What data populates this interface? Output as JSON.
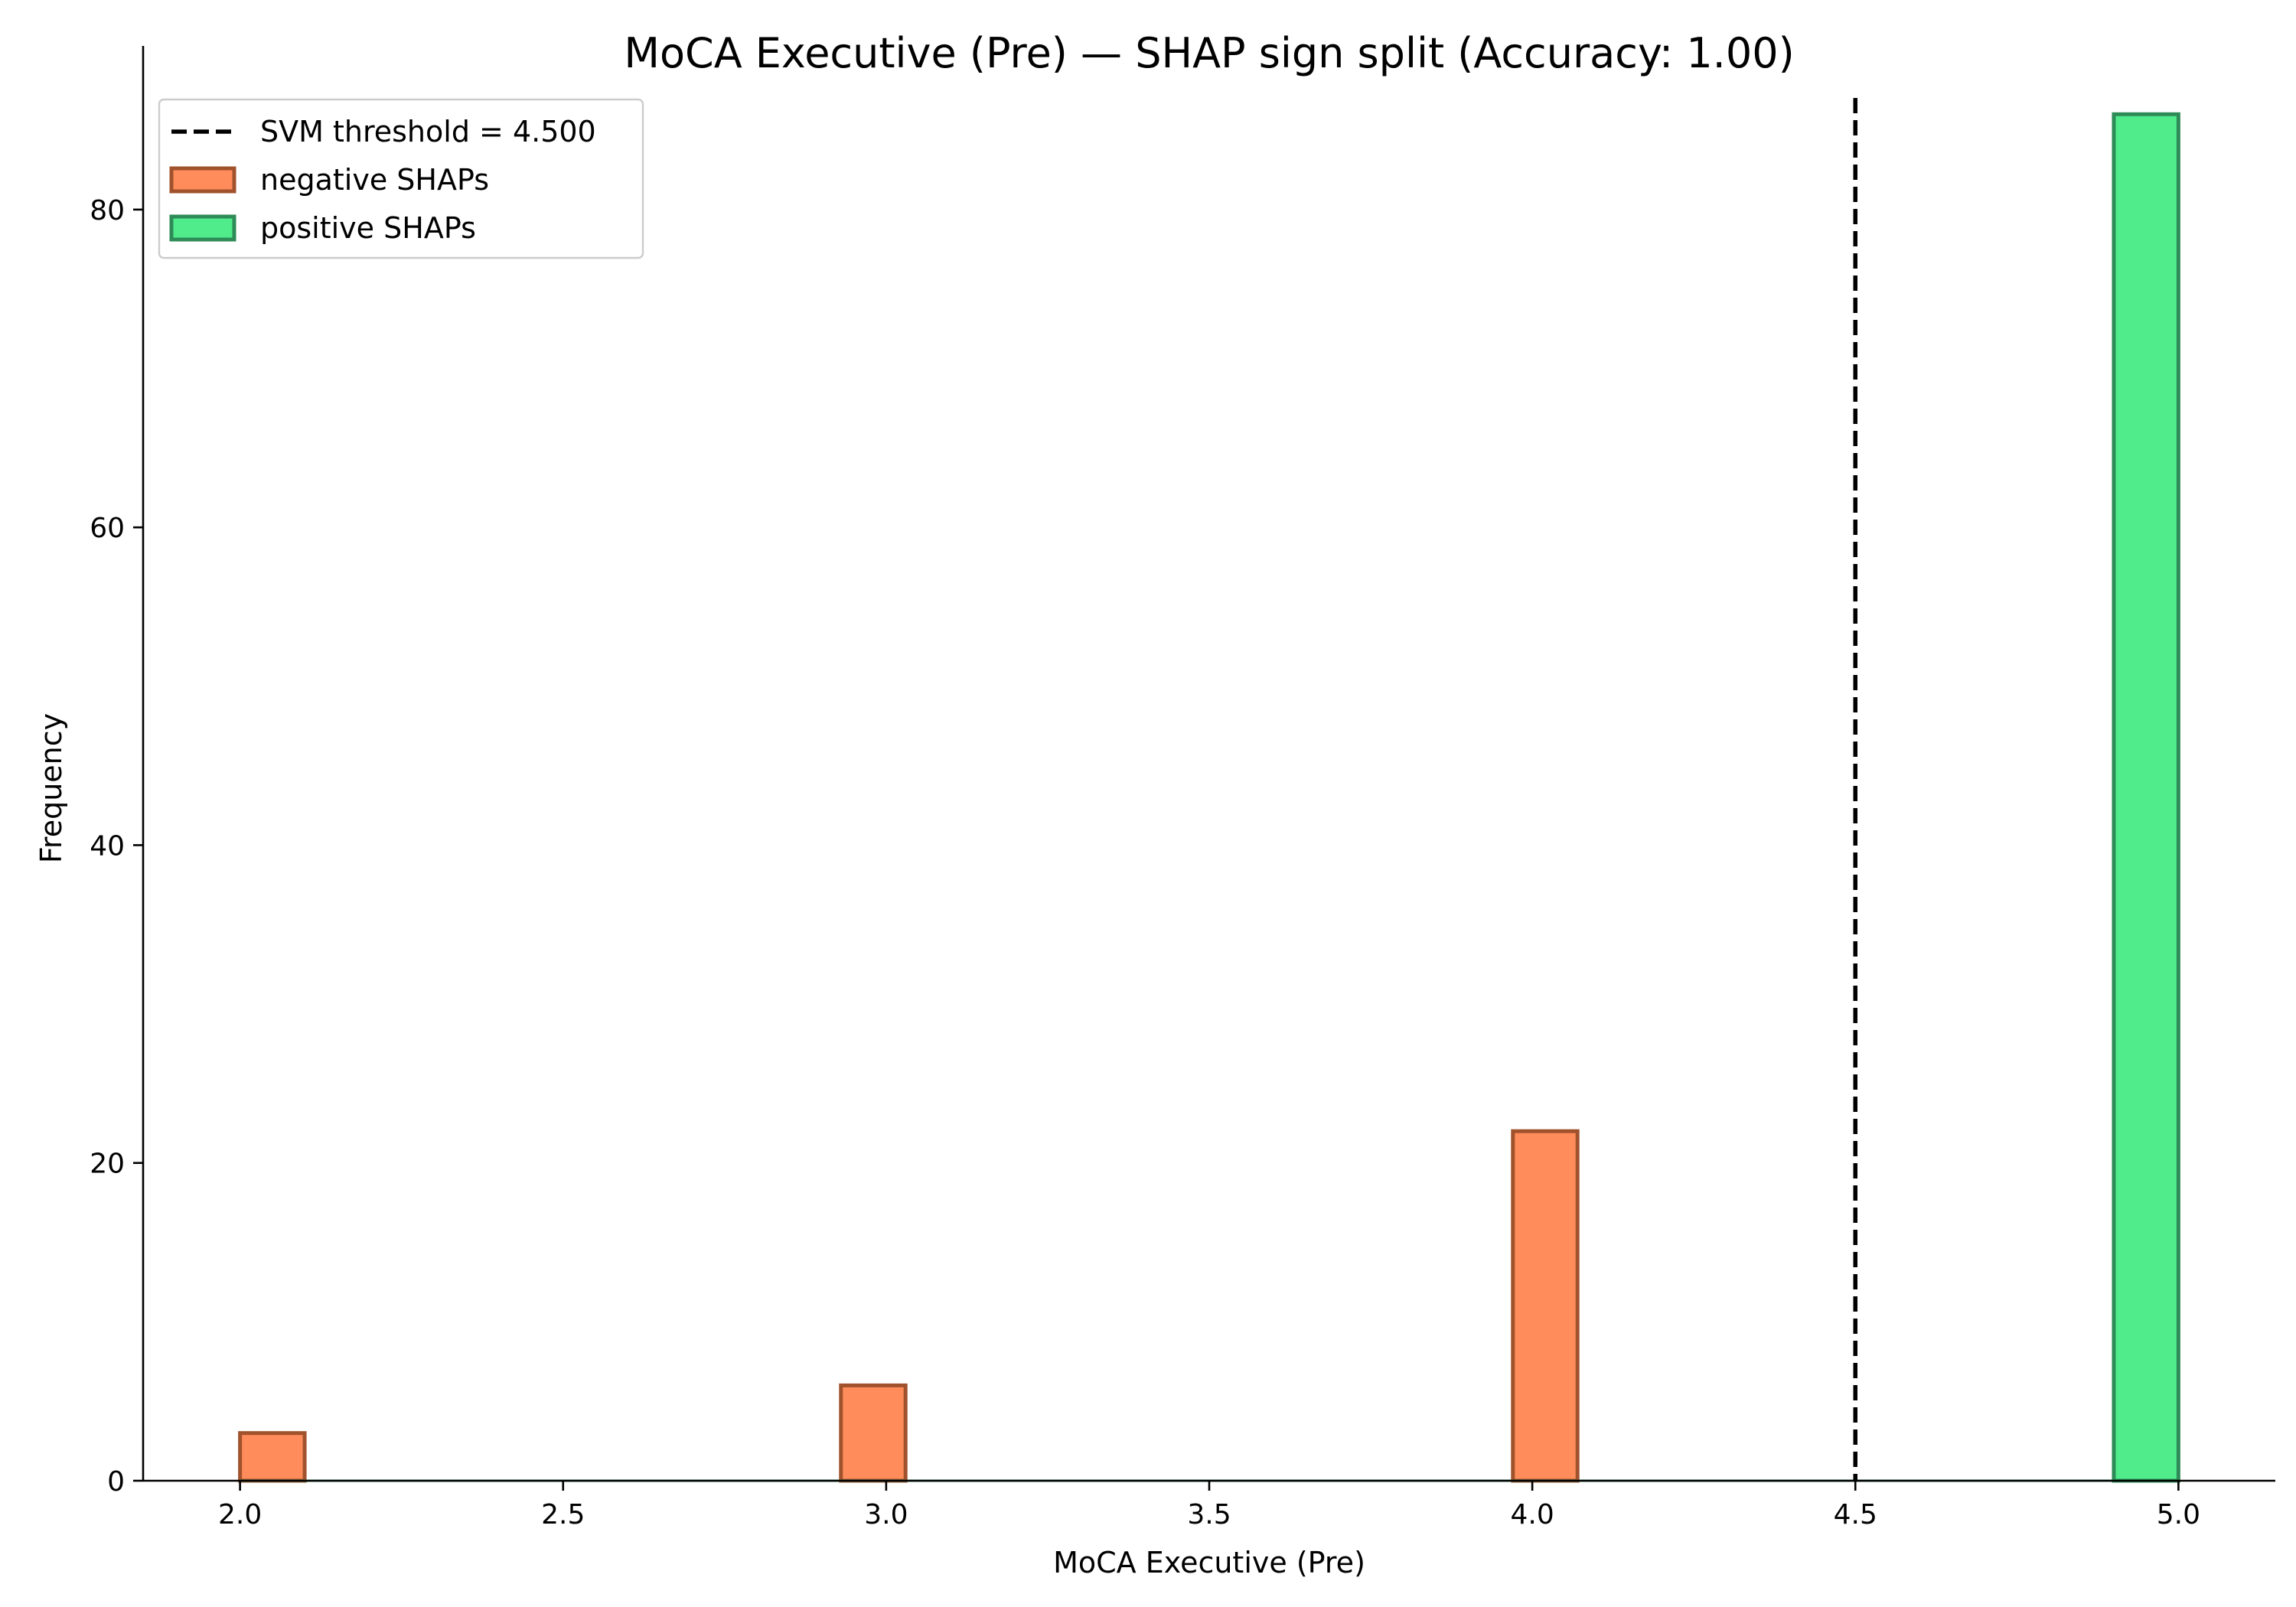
{
  "chart_data": {
    "type": "bar",
    "title": "MoCA Executive (Pre) — SHAP sign split (Accuracy: 1.00)",
    "xlabel": "MoCA Executive (Pre)",
    "ylabel": "Frequency",
    "xlim": [
      1.85,
      5.15
    ],
    "ylim": [
      0,
      90.3
    ],
    "xticks": [
      2.0,
      2.5,
      3.0,
      3.5,
      4.0,
      4.5,
      5.0
    ],
    "xtick_labels": [
      "2.0",
      "2.5",
      "3.0",
      "3.5",
      "4.0",
      "4.5",
      "5.0"
    ],
    "yticks": [
      0,
      20,
      40,
      60,
      80
    ],
    "ytick_labels": [
      "0",
      "20",
      "40",
      "60",
      "80"
    ],
    "bin_width": 0.1,
    "threshold": {
      "label": "SVM threshold = 4.500",
      "value": 4.5,
      "color": "#000000"
    },
    "series": [
      {
        "name": "negative SHAPs",
        "fill": "#ff8c5a",
        "edge": "#a0522d",
        "bins": [
          {
            "x": 2.0,
            "value": 3
          },
          {
            "x": 2.93,
            "value": 6
          },
          {
            "x": 3.97,
            "value": 22
          }
        ]
      },
      {
        "name": "positive SHAPs",
        "fill": "#50ec8c",
        "edge": "#2e8b57",
        "bins": [
          {
            "x": 4.9,
            "value": 86
          }
        ]
      }
    ],
    "legend_position": "top-left",
    "grid": false
  }
}
